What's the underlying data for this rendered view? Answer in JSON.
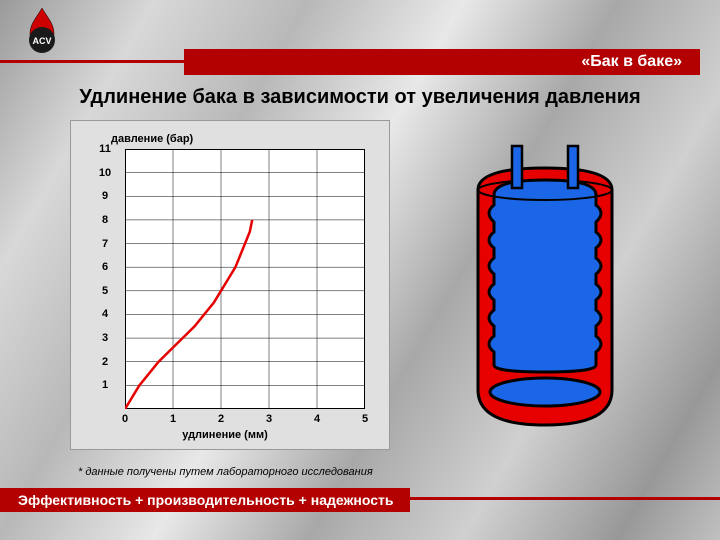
{
  "logo": {
    "text": "ACV",
    "bg": "#1a1a1a",
    "flame": "#cc0000"
  },
  "header": {
    "title": "«Бак в баке»",
    "bar_color": "#b30000",
    "text_color": "#ffffff"
  },
  "subtitle": "Удлинение бака в зависимости от увеличения давления",
  "footnote": "* данные получены путем лабораторного исследования",
  "footer": "Эффективность + производительность + надежность",
  "chart": {
    "type": "line",
    "bg": "#e0e0e0",
    "plot_bg": "#ffffff",
    "grid_color": "#000000",
    "grid_width": 0.5,
    "axis_color": "#000000",
    "axis_width": 1,
    "line_color": "#e60000",
    "line_width": 2.5,
    "ylabel": "давление (бар)",
    "xlabel": "удлинение (мм)",
    "label_fontsize": 11,
    "tick_fontsize": 11,
    "xlim": [
      0,
      5
    ],
    "ylim": [
      0,
      11
    ],
    "xticks": [
      0,
      1,
      2,
      3,
      4,
      5
    ],
    "yticks": [
      0,
      1,
      2,
      3,
      4,
      5,
      6,
      7,
      8,
      9,
      10,
      11
    ],
    "curve": [
      [
        0.0,
        0.0
      ],
      [
        0.15,
        0.5
      ],
      [
        0.3,
        1.0
      ],
      [
        0.5,
        1.5
      ],
      [
        0.7,
        2.0
      ],
      [
        0.95,
        2.5
      ],
      [
        1.2,
        3.0
      ],
      [
        1.45,
        3.5
      ],
      [
        1.65,
        4.0
      ],
      [
        1.85,
        4.5
      ],
      [
        2.0,
        5.0
      ],
      [
        2.15,
        5.5
      ],
      [
        2.3,
        6.0
      ],
      [
        2.4,
        6.5
      ],
      [
        2.5,
        7.0
      ],
      [
        2.6,
        7.5
      ],
      [
        2.65,
        8.0
      ]
    ]
  },
  "tank": {
    "outer_color": "#e60000",
    "inner_color": "#1a66e6",
    "stroke": "#000000",
    "pipe_color": "#1a66e6"
  }
}
